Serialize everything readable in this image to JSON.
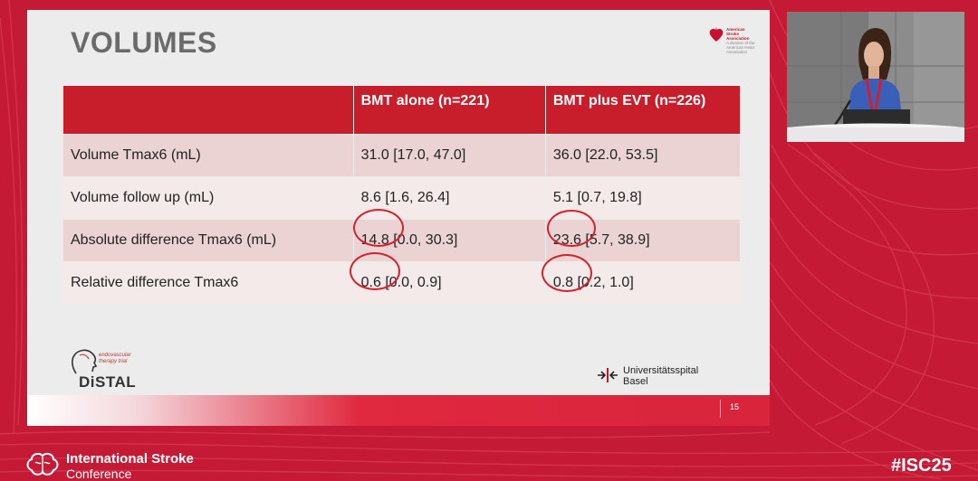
{
  "slide": {
    "title": "VOLUMES",
    "page_number": "15",
    "aha_logo": {
      "line1": "American",
      "line2": "Stroke",
      "line3": "Association",
      "line4": "A division of the",
      "line5": "American Heart Association"
    },
    "distal_logo": {
      "name": "DiSTAL",
      "sub1": "endovascular",
      "sub2": "therapy trial"
    },
    "hospital_logo": {
      "line1": "Universitätsspital",
      "line2": "Basel"
    }
  },
  "table": {
    "headers": [
      "",
      "BMT alone (n=221)",
      "BMT plus EVT (n=226)"
    ],
    "rows": [
      {
        "label": "Volume Tmax6 (mL)",
        "bmt": "31.0 [17.0, 47.0]",
        "evt": "36.0 [22.0, 53.5]"
      },
      {
        "label": "Volume follow up (mL)",
        "bmt": "8.6 [1.6, 26.4]",
        "evt": "5.1 [0.7, 19.8]"
      },
      {
        "label": "Absolute difference Tmax6 (mL)",
        "bmt": "14.8 [0.0, 30.3]",
        "evt": "23.6 [5.7, 38.9]"
      },
      {
        "label": "Relative difference Tmax6",
        "bmt": "0.6 [0.0, 0.9]",
        "evt": "0.8 [0.2, 1.0]"
      }
    ]
  },
  "conference": {
    "name_line1": "International Stroke",
    "name_line2": "Conference",
    "hashtag": "#ISC25"
  },
  "colors": {
    "brand_red": "#c41a35",
    "table_header": "#c81e2c",
    "circle_annotation": "#d5212b"
  }
}
